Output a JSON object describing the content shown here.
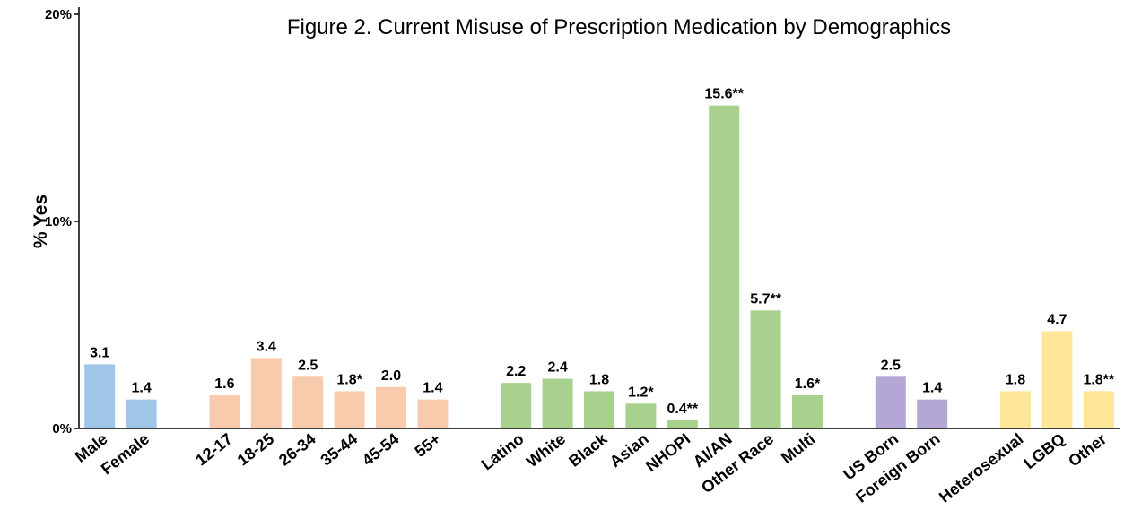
{
  "chart_data": {
    "type": "bar",
    "title": "Figure 2. Current Misuse of Prescription Medication by Demographics",
    "y_label": "% Yes",
    "categories": [
      "Male",
      "Female",
      null,
      "12-17",
      "18-25",
      "26-34",
      "35-44",
      "45-54",
      "55+",
      null,
      "Latino",
      "White",
      "Black",
      "Asian",
      "NHOPI",
      "AI/AN",
      "Other Race",
      "Multi",
      null,
      "US Born",
      "Foreign Born",
      null,
      "Heterosexual",
      "LGBQ",
      "Other"
    ],
    "values": [
      3.1,
      1.4,
      null,
      1.6,
      3.4,
      2.5,
      1.8,
      2.0,
      1.4,
      null,
      2.2,
      2.4,
      1.8,
      1.2,
      0.4,
      15.6,
      5.7,
      1.6,
      null,
      2.5,
      1.4,
      null,
      1.8,
      4.7,
      1.8
    ],
    "value_labels": [
      "3.1",
      "1.4",
      null,
      "1.6",
      "3.4",
      "2.5",
      "1.8*",
      "2.0",
      "1.4",
      null,
      "2.2",
      "2.4",
      "1.8",
      "1.2*",
      "0.4**",
      "15.6**",
      "5.7**",
      "1.6*",
      null,
      "2.5",
      "1.4",
      null,
      "1.8",
      "4.7",
      "1.8**"
    ],
    "colors": [
      "#9fc5e8",
      "#9fc5e8",
      null,
      "#f8cbad",
      "#f8cbad",
      "#f8cbad",
      "#f8cbad",
      "#f8cbad",
      "#f8cbad",
      null,
      "#a9d18e",
      "#a9d18e",
      "#a9d18e",
      "#a9d18e",
      "#a9d18e",
      "#a9d18e",
      "#a9d18e",
      "#a9d18e",
      null,
      "#b4a7d6",
      "#b4a7d6",
      null,
      "#ffe699",
      "#ffe699",
      "#ffe699"
    ],
    "ylim": [
      0,
      20
    ],
    "yticks": [
      {
        "value": 0,
        "label": "0%"
      },
      {
        "value": 10,
        "label": "10%"
      },
      {
        "value": 20,
        "label": "20%"
      }
    ]
  }
}
